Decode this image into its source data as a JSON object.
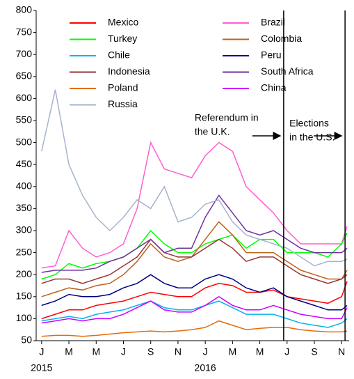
{
  "chart_data": {
    "type": "line",
    "x": [
      0,
      1,
      2,
      3,
      4,
      5,
      6,
      7,
      8,
      9,
      10,
      11,
      12,
      13,
      14,
      15,
      16,
      17,
      18,
      19,
      20,
      21,
      22,
      22.4
    ],
    "xlim": [
      -0.4,
      22.55
    ],
    "xticks": [
      {
        "value": 0,
        "label": "J"
      },
      {
        "value": 2,
        "label": "M"
      },
      {
        "value": 4,
        "label": "M"
      },
      {
        "value": 6,
        "label": "J"
      },
      {
        "value": 8,
        "label": "S"
      },
      {
        "value": 10,
        "label": "N"
      },
      {
        "value": 12,
        "label": "J"
      },
      {
        "value": 14,
        "label": "M"
      },
      {
        "value": 16,
        "label": "M"
      },
      {
        "value": 18,
        "label": "J"
      },
      {
        "value": 20,
        "label": "S"
      },
      {
        "value": 22,
        "label": "N"
      }
    ],
    "year_labels": [
      {
        "value": 0,
        "label": "2015"
      },
      {
        "value": 12,
        "label": "2016"
      }
    ],
    "ylim": [
      50,
      800
    ],
    "yticks": [
      50,
      100,
      150,
      200,
      250,
      300,
      350,
      400,
      450,
      500,
      550,
      600,
      650,
      700,
      750,
      800
    ],
    "events": [
      {
        "x": 17.75,
        "lines": [
          "Referendum in",
          "the U.K."
        ]
      },
      {
        "x": 22.25,
        "lines": [
          "Elections",
          "in the U.S."
        ]
      }
    ],
    "series": [
      {
        "name": "Mexico",
        "color": "#ff0000",
        "values": [
          100,
          110,
          120,
          120,
          130,
          135,
          140,
          150,
          160,
          155,
          150,
          150,
          170,
          180,
          175,
          160,
          160,
          165,
          150,
          145,
          140,
          135,
          150,
          185
        ]
      },
      {
        "name": "Brazil",
        "color": "#ff5fcf",
        "values": [
          215,
          220,
          300,
          260,
          240,
          250,
          270,
          350,
          500,
          440,
          430,
          420,
          470,
          500,
          480,
          400,
          370,
          340,
          300,
          270,
          270,
          270,
          270,
          310
        ]
      },
      {
        "name": "Turkey",
        "color": "#00ff00",
        "values": [
          190,
          200,
          225,
          215,
          225,
          230,
          240,
          260,
          300,
          270,
          250,
          250,
          270,
          280,
          290,
          260,
          280,
          280,
          250,
          250,
          250,
          240,
          270,
          295
        ]
      },
      {
        "name": "Colombia",
        "color": "#c0601a",
        "values": [
          150,
          160,
          170,
          165,
          175,
          180,
          200,
          230,
          270,
          240,
          230,
          240,
          280,
          320,
          290,
          250,
          250,
          250,
          230,
          210,
          200,
          190,
          190,
          210
        ]
      },
      {
        "name": "Chile",
        "color": "#00b4f0",
        "values": [
          95,
          100,
          105,
          100,
          110,
          115,
          120,
          130,
          140,
          125,
          120,
          120,
          130,
          140,
          125,
          110,
          110,
          110,
          100,
          90,
          85,
          80,
          90,
          100
        ]
      },
      {
        "name": "Peru",
        "color": "#000080",
        "values": [
          130,
          140,
          155,
          150,
          150,
          155,
          170,
          180,
          200,
          180,
          170,
          170,
          190,
          200,
          190,
          170,
          160,
          170,
          150,
          140,
          130,
          120,
          120,
          130
        ]
      },
      {
        "name": "Indonesia",
        "color": "#993333",
        "values": [
          180,
          190,
          190,
          180,
          190,
          200,
          220,
          240,
          280,
          250,
          240,
          240,
          260,
          280,
          260,
          230,
          240,
          240,
          220,
          200,
          190,
          180,
          190,
          200
        ]
      },
      {
        "name": "South Africa",
        "color": "#7030a0",
        "values": [
          205,
          210,
          210,
          210,
          215,
          230,
          240,
          260,
          280,
          250,
          260,
          260,
          330,
          380,
          340,
          300,
          290,
          300,
          280,
          260,
          250,
          250,
          250,
          260
        ]
      },
      {
        "name": "Poland",
        "color": "#e36c09",
        "values": [
          60,
          62,
          62,
          60,
          62,
          65,
          68,
          70,
          72,
          70,
          72,
          75,
          80,
          95,
          85,
          75,
          78,
          80,
          80,
          75,
          72,
          70,
          70,
          72
        ]
      },
      {
        "name": "China",
        "color": "#cc00ff",
        "values": [
          90,
          95,
          100,
          95,
          100,
          100,
          110,
          125,
          140,
          120,
          115,
          115,
          130,
          150,
          130,
          120,
          120,
          130,
          120,
          110,
          105,
          100,
          100,
          125
        ]
      },
      {
        "name": "Russia",
        "color": "#a5b3cc",
        "values": [
          480,
          620,
          450,
          380,
          330,
          300,
          330,
          370,
          350,
          400,
          320,
          330,
          360,
          370,
          320,
          290,
          280,
          270,
          260,
          240,
          220,
          230,
          230,
          235
        ]
      }
    ]
  }
}
